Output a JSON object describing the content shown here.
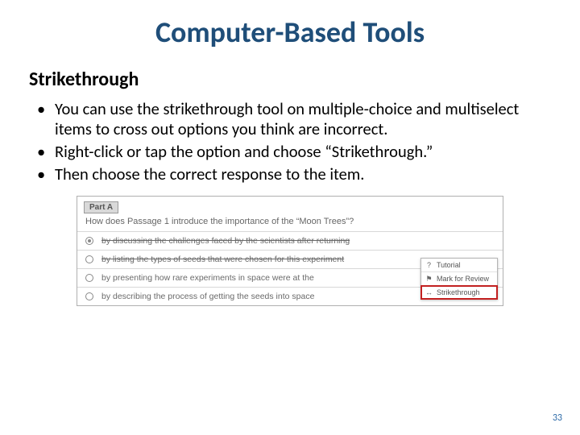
{
  "title": "Computer-Based Tools",
  "subtitle": "Strikethrough",
  "bullets": [
    "You can use the strikethrough tool on multiple-choice and multiselect items to cross out options you think are incorrect.",
    "Right-click or tap the option and choose “Strikethrough.”",
    "Then choose the correct response to the item."
  ],
  "figure": {
    "part_label": "Part A",
    "question": "How does Passage 1 introduce the importance of the “Moon Trees”?",
    "options": [
      {
        "text": "by discussing the challenges faced by the scientists after returning",
        "struck": true,
        "dot": true
      },
      {
        "text": "by listing the types of seeds that were chosen for this experiment",
        "struck": true,
        "dot": false
      },
      {
        "text": "by presenting how rare experiments in space were at the",
        "struck": false,
        "dot": false,
        "menu_anchor": true
      },
      {
        "text": "by describing the process of getting the seeds into space",
        "struck": false,
        "dot": false
      }
    ],
    "context_menu": [
      {
        "label": "Tutorial",
        "icon": "?"
      },
      {
        "label": "Mark for Review",
        "icon": "⚑"
      },
      {
        "label": "Strikethrough",
        "icon": "→",
        "highlight": true
      }
    ]
  },
  "page_number": "33",
  "colors": {
    "title": "#1f4e79",
    "pagenum": "#2e6ba8",
    "menu_highlight": "#c22020"
  }
}
